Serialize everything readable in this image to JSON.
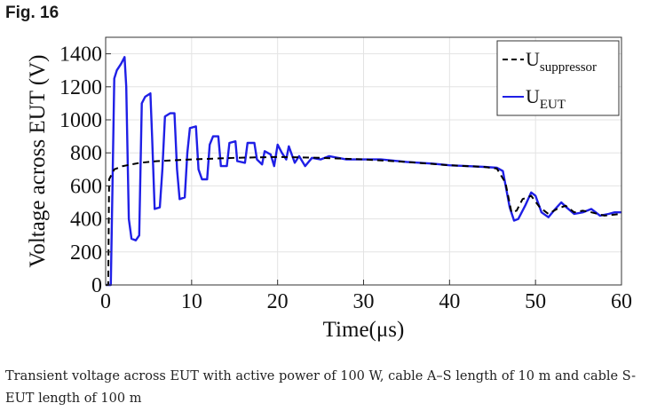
{
  "figure_label": "Fig. 16",
  "caption": "Transient voltage across EUT with active power of 100 W, cable A–S length of 10 m and cable S-EUT length of 100 m",
  "chart_data": {
    "type": "line",
    "xlabel": "Time(μs)",
    "ylabel": "Voltage across EUT (V)",
    "xlim": [
      0,
      60
    ],
    "ylim": [
      0,
      1500
    ],
    "xticks": [
      "0",
      "10",
      "20",
      "30",
      "40",
      "50",
      "60"
    ],
    "yticks": [
      "0",
      "200",
      "400",
      "600",
      "800",
      "1000",
      "1200",
      "1400"
    ],
    "grid": true,
    "legend_position": "top-right",
    "legend": [
      {
        "symbol": "U",
        "subscript": "suppressor"
      },
      {
        "symbol": "U",
        "subscript": "EUT"
      }
    ],
    "series": [
      {
        "id": "suppressor",
        "color": "#000000",
        "style": "dashed",
        "points": [
          [
            0,
            0
          ],
          [
            0.3,
            0
          ],
          [
            0.4,
            640
          ],
          [
            1,
            700
          ],
          [
            2,
            720
          ],
          [
            4,
            740
          ],
          [
            6,
            750
          ],
          [
            10,
            760
          ],
          [
            15,
            770
          ],
          [
            20,
            775
          ],
          [
            25,
            770
          ],
          [
            30,
            760
          ],
          [
            35,
            745
          ],
          [
            40,
            725
          ],
          [
            44,
            715
          ],
          [
            45.5,
            705
          ],
          [
            46.5,
            620
          ],
          [
            47.2,
            440
          ],
          [
            47.8,
            450
          ],
          [
            48.5,
            520
          ],
          [
            49.5,
            540
          ],
          [
            50.5,
            470
          ],
          [
            51.5,
            430
          ],
          [
            52.5,
            460
          ],
          [
            53.5,
            480
          ],
          [
            54.5,
            440
          ],
          [
            55.5,
            450
          ],
          [
            56.5,
            440
          ],
          [
            58,
            420
          ],
          [
            60,
            430
          ]
        ]
      },
      {
        "id": "eut",
        "color": "#1f1fe6",
        "style": "solid",
        "points": [
          [
            0,
            0
          ],
          [
            0.6,
            0
          ],
          [
            0.8,
            600
          ],
          [
            1.0,
            1250
          ],
          [
            1.3,
            1300
          ],
          [
            1.8,
            1340
          ],
          [
            2.2,
            1380
          ],
          [
            2.4,
            1200
          ],
          [
            2.7,
            400
          ],
          [
            3.0,
            280
          ],
          [
            3.5,
            270
          ],
          [
            3.9,
            300
          ],
          [
            4.2,
            1100
          ],
          [
            4.6,
            1140
          ],
          [
            5.2,
            1160
          ],
          [
            5.4,
            900
          ],
          [
            5.7,
            460
          ],
          [
            6.3,
            470
          ],
          [
            6.6,
            700
          ],
          [
            6.9,
            1020
          ],
          [
            7.5,
            1040
          ],
          [
            8.0,
            1040
          ],
          [
            8.3,
            700
          ],
          [
            8.6,
            520
          ],
          [
            9.2,
            530
          ],
          [
            9.5,
            800
          ],
          [
            9.8,
            950
          ],
          [
            10.5,
            960
          ],
          [
            10.8,
            700
          ],
          [
            11.2,
            640
          ],
          [
            11.8,
            640
          ],
          [
            12.1,
            850
          ],
          [
            12.5,
            900
          ],
          [
            13.1,
            900
          ],
          [
            13.4,
            720
          ],
          [
            14.1,
            720
          ],
          [
            14.4,
            860
          ],
          [
            15.1,
            870
          ],
          [
            15.3,
            750
          ],
          [
            16.2,
            740
          ],
          [
            16.5,
            860
          ],
          [
            17.3,
            860
          ],
          [
            17.6,
            760
          ],
          [
            18.2,
            730
          ],
          [
            18.5,
            810
          ],
          [
            19.2,
            790
          ],
          [
            19.6,
            720
          ],
          [
            20.0,
            850
          ],
          [
            20.5,
            800
          ],
          [
            21.0,
            760
          ],
          [
            21.3,
            840
          ],
          [
            22.0,
            740
          ],
          [
            22.5,
            780
          ],
          [
            23.2,
            720
          ],
          [
            24,
            770
          ],
          [
            25,
            760
          ],
          [
            26,
            780
          ],
          [
            28,
            760
          ],
          [
            30,
            760
          ],
          [
            32,
            760
          ],
          [
            35,
            745
          ],
          [
            38,
            735
          ],
          [
            40,
            725
          ],
          [
            42,
            720
          ],
          [
            44,
            715
          ],
          [
            45.5,
            710
          ],
          [
            46.2,
            690
          ],
          [
            47.0,
            470
          ],
          [
            47.5,
            390
          ],
          [
            48.0,
            400
          ],
          [
            48.8,
            480
          ],
          [
            49.5,
            560
          ],
          [
            50.0,
            540
          ],
          [
            50.7,
            440
          ],
          [
            51.5,
            410
          ],
          [
            52.3,
            460
          ],
          [
            53.0,
            500
          ],
          [
            53.6,
            470
          ],
          [
            54.5,
            430
          ],
          [
            55.5,
            440
          ],
          [
            56.5,
            460
          ],
          [
            57.5,
            420
          ],
          [
            58.5,
            430
          ],
          [
            59.2,
            440
          ],
          [
            60,
            440
          ]
        ]
      }
    ]
  }
}
